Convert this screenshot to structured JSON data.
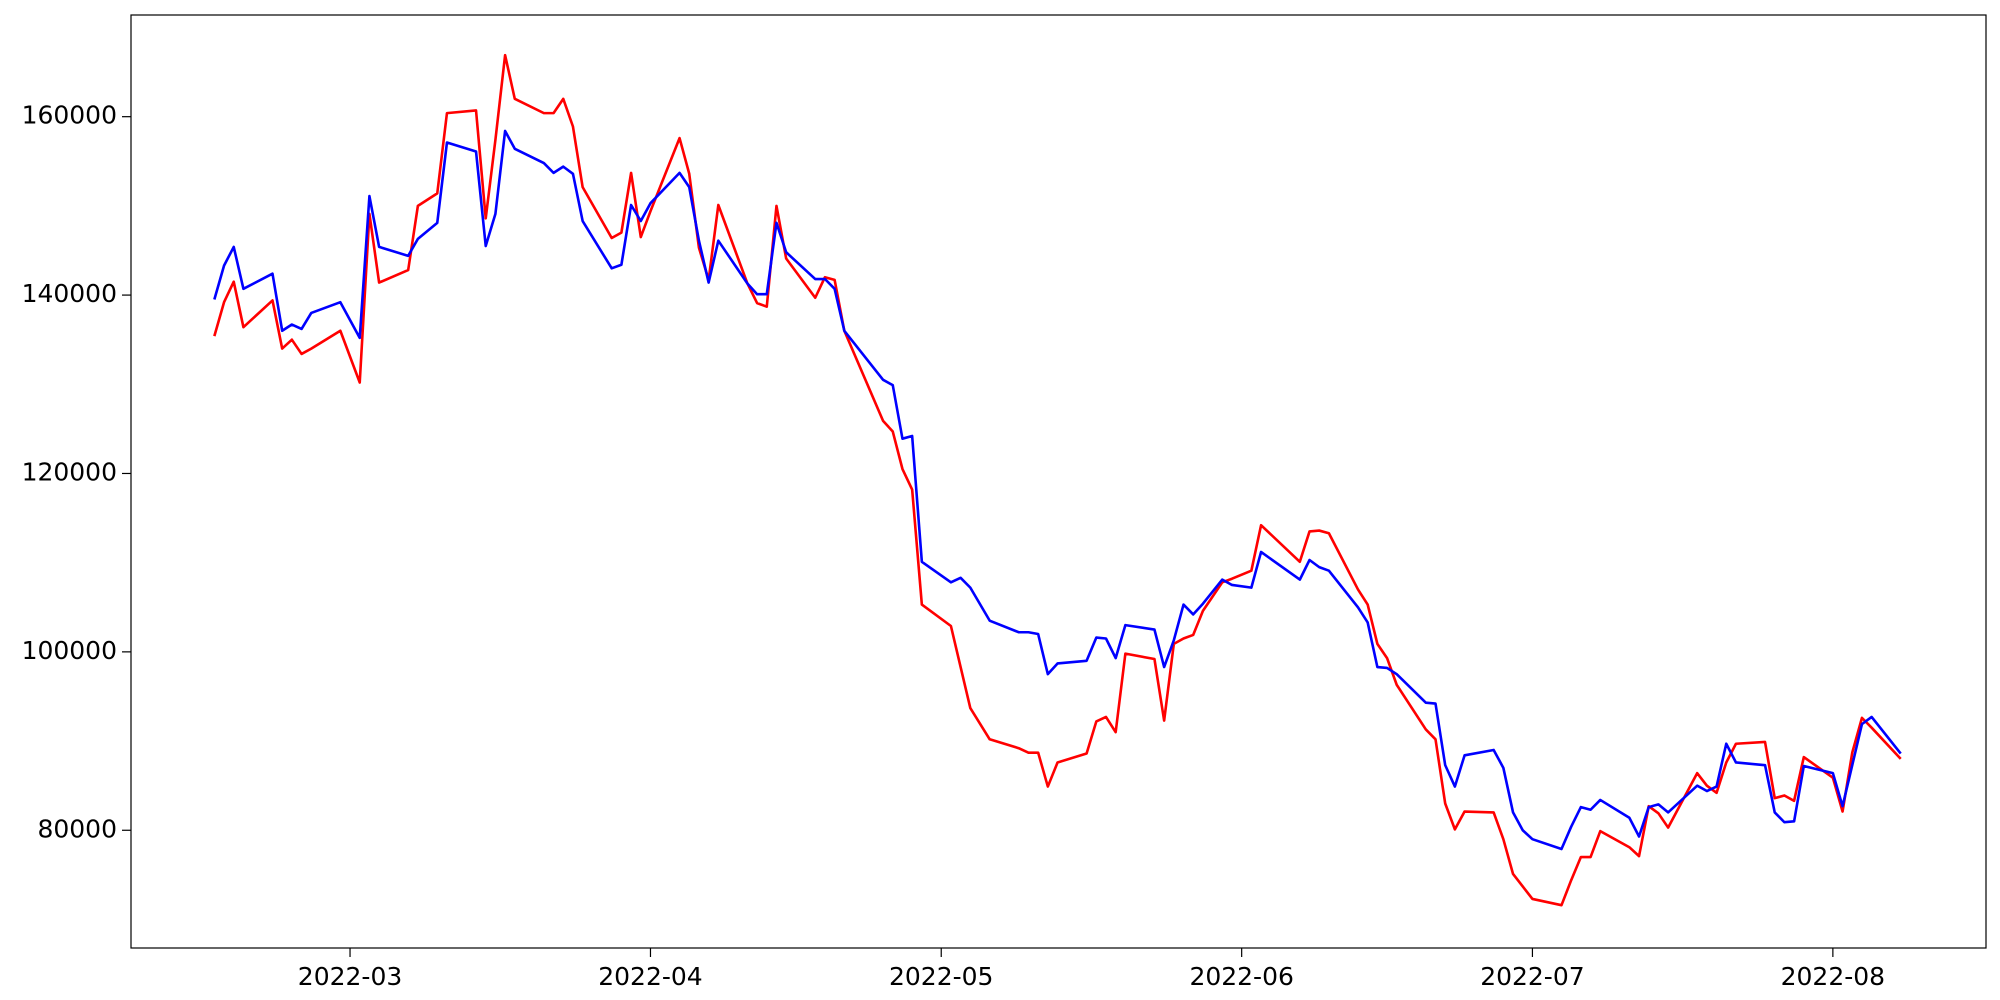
{
  "chart_data": {
    "type": "line",
    "x": [
      46,
      47,
      48,
      49,
      52,
      53,
      54,
      55,
      56,
      59,
      61,
      62,
      63,
      66,
      67,
      69,
      70,
      73,
      74,
      75,
      76,
      77,
      80,
      81,
      82,
      83,
      84,
      87,
      88,
      89,
      90,
      91,
      94,
      95,
      96,
      97,
      98,
      101,
      102,
      103,
      104,
      105,
      108,
      109,
      110,
      111,
      115,
      116,
      117,
      118,
      119,
      122,
      123,
      124,
      126,
      129,
      130,
      131,
      132,
      133,
      136,
      137,
      138,
      139,
      140,
      143,
      144,
      145,
      146,
      147,
      148,
      150,
      151,
      153,
      154,
      158,
      159,
      160,
      161,
      164,
      165,
      166,
      167,
      168,
      171,
      172,
      173,
      174,
      175,
      178,
      179,
      180,
      181,
      182,
      185,
      186,
      187,
      188,
      189,
      192,
      193,
      194,
      195,
      196,
      199,
      200,
      201,
      202,
      203,
      206,
      207,
      208,
      209,
      210,
      213,
      214,
      215,
      216,
      217,
      220
    ],
    "series": [
      {
        "color": "#ff0000",
        "values": [
          135400,
          139200,
          141500,
          136400,
          139400,
          134000,
          135000,
          133400,
          134000,
          136000,
          130200,
          149100,
          141400,
          142800,
          150000,
          151400,
          160400,
          160700,
          148600,
          157400,
          166900,
          162000,
          160400,
          160400,
          162000,
          158900,
          152100,
          146400,
          147000,
          153700,
          146500,
          149400,
          157600,
          153600,
          145300,
          141700,
          150100,
          141300,
          139100,
          138700,
          150000,
          144100,
          139700,
          142000,
          141700,
          136000,
          125900,
          124700,
          120500,
          118200,
          105300,
          102900,
          98300,
          93700,
          90200,
          89200,
          88700,
          88700,
          84900,
          87600,
          88600,
          92200,
          92700,
          91000,
          99800,
          99200,
          92300,
          100900,
          101500,
          101900,
          104600,
          107800,
          108200,
          109100,
          114200,
          110100,
          113500,
          113600,
          113300,
          107000,
          105300,
          100900,
          99300,
          96300,
          91300,
          90200,
          83000,
          80100,
          82100,
          82000,
          79000,
          75100,
          73700,
          72300,
          71600,
          74400,
          77000,
          77000,
          79900,
          78100,
          77100,
          82700,
          81900,
          80300,
          86400,
          85000,
          84200,
          87600,
          89700,
          89900,
          83600,
          83900,
          83300,
          88200,
          85900,
          82100,
          88700,
          92600,
          91500,
          88000
        ]
      },
      {
        "color": "#0000ff",
        "values": [
          139500,
          143300,
          145400,
          140700,
          142400,
          136000,
          136700,
          136200,
          138000,
          139200,
          135200,
          151100,
          145400,
          144400,
          146300,
          148100,
          157100,
          156100,
          145500,
          149100,
          158400,
          156400,
          154800,
          153700,
          154400,
          153600,
          148300,
          143000,
          143400,
          150100,
          148300,
          150300,
          153700,
          152100,
          146100,
          141400,
          146100,
          141300,
          140100,
          140100,
          148100,
          144800,
          141800,
          141800,
          140700,
          136000,
          130500,
          129900,
          123900,
          124200,
          110100,
          107800,
          108300,
          107200,
          103500,
          102200,
          102200,
          102000,
          97500,
          98700,
          99000,
          101600,
          101500,
          99300,
          103000,
          102500,
          98300,
          101300,
          105300,
          104200,
          105400,
          108100,
          107500,
          107200,
          111200,
          108100,
          110300,
          109500,
          109100,
          105000,
          103300,
          98300,
          98200,
          97500,
          94300,
          94200,
          87300,
          84900,
          88400,
          89000,
          87000,
          82000,
          80000,
          79000,
          77900,
          80400,
          82600,
          82300,
          83400,
          81400,
          79300,
          82600,
          82900,
          82000,
          85000,
          84400,
          84900,
          89700,
          87600,
          87300,
          82000,
          80900,
          81000,
          87200,
          86400,
          82700,
          87300,
          91900,
          92700,
          88600
        ]
      }
    ],
    "xlim": [
      37.4,
      228.8
    ],
    "xticks": [
      {
        "value": 60,
        "label": "2022-03"
      },
      {
        "value": 91,
        "label": "2022-04"
      },
      {
        "value": 121,
        "label": "2022-05"
      },
      {
        "value": 152,
        "label": "2022-06"
      },
      {
        "value": 182,
        "label": "2022-07"
      },
      {
        "value": 213,
        "label": "2022-08"
      }
    ],
    "ylim": [
      66800,
      171400
    ],
    "yticks": [
      80000,
      100000,
      120000,
      140000,
      160000
    ],
    "grid": false
  }
}
